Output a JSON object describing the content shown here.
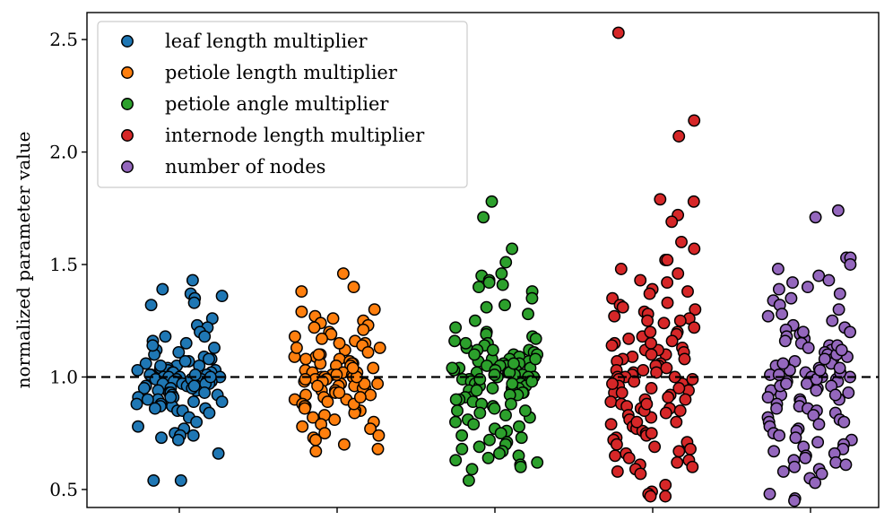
{
  "chart_data": {
    "type": "scatter",
    "title": "",
    "xlabel": "",
    "ylabel": "normalized parameter value",
    "ylim": [
      0.42,
      2.62
    ],
    "yticks": [
      0.5,
      1.0,
      1.5,
      2.0,
      2.5
    ],
    "ytick_labels": [
      "0.5",
      "1.0",
      "1.5",
      "2.0",
      "2.5"
    ],
    "reference_line": 1.0,
    "legend_position": "upper left",
    "grid": false,
    "series": [
      {
        "name": "leaf length multiplier",
        "color": "#1f77b4",
        "center": 1,
        "y": [
          1.43,
          1.39,
          1.37,
          1.36,
          1.35,
          1.33,
          1.32,
          1.26,
          1.23,
          1.22,
          1.2,
          1.18,
          1.18,
          1.16,
          1.15,
          1.12,
          1.1,
          1.09,
          1.08,
          1.08,
          1.06,
          1.05,
          1.05,
          1.04,
          1.04,
          1.03,
          1.03,
          1.02,
          1.02,
          1.02,
          1.01,
          1.01,
          1.01,
          1.0,
          1.0,
          1.0,
          1.0,
          0.99,
          0.99,
          0.99,
          0.98,
          0.98,
          0.98,
          0.97,
          0.97,
          0.97,
          0.96,
          0.96,
          0.96,
          0.95,
          0.95,
          0.95,
          0.94,
          0.94,
          0.93,
          0.93,
          0.92,
          0.92,
          0.91,
          0.91,
          0.9,
          0.9,
          0.89,
          0.88,
          0.88,
          0.87,
          0.87,
          0.86,
          0.86,
          0.85,
          0.85,
          0.84,
          0.82,
          0.8,
          0.78,
          0.77,
          0.75,
          0.74,
          0.74,
          0.73,
          0.72,
          0.66,
          0.54,
          0.54,
          1.13,
          1.07,
          1.03,
          0.99,
          0.95,
          0.91,
          0.97,
          1.01,
          1.05,
          0.93,
          0.89,
          1.11,
          1.14,
          1.07,
          0.96,
          1.0
        ]
      },
      {
        "name": "petiole length multiplier",
        "color": "#ff7f0e",
        "center": 2,
        "y": [
          1.46,
          1.4,
          1.38,
          1.3,
          1.29,
          1.27,
          1.26,
          1.25,
          1.24,
          1.23,
          1.22,
          1.21,
          1.2,
          1.19,
          1.18,
          1.17,
          1.16,
          1.15,
          1.14,
          1.13,
          1.12,
          1.11,
          1.1,
          1.09,
          1.09,
          1.08,
          1.07,
          1.06,
          1.06,
          1.05,
          1.05,
          1.04,
          1.03,
          1.03,
          1.02,
          1.02,
          1.01,
          1.01,
          1.0,
          1.0,
          1.0,
          0.99,
          0.99,
          0.98,
          0.98,
          0.97,
          0.97,
          0.96,
          0.96,
          0.95,
          0.95,
          0.94,
          0.94,
          0.93,
          0.92,
          0.92,
          0.91,
          0.9,
          0.9,
          0.89,
          0.88,
          0.87,
          0.87,
          0.86,
          0.85,
          0.85,
          0.84,
          0.83,
          0.82,
          0.81,
          0.8,
          0.79,
          0.78,
          0.77,
          0.75,
          0.74,
          0.73,
          0.72,
          0.7,
          0.68,
          0.67,
          1.02,
          1.06,
          0.97,
          1.1,
          0.93,
          1.0,
          1.15,
          0.88,
          1.04,
          0.96,
          1.08,
          0.91,
          1.13,
          0.99,
          1.01
        ]
      },
      {
        "name": "petiole angle multiplier",
        "color": "#2ca02c",
        "center": 3,
        "y": [
          1.78,
          1.71,
          1.57,
          1.51,
          1.46,
          1.45,
          1.43,
          1.42,
          1.41,
          1.4,
          1.38,
          1.35,
          1.32,
          1.31,
          1.28,
          1.25,
          1.22,
          1.2,
          1.19,
          1.18,
          1.17,
          1.16,
          1.15,
          1.14,
          1.13,
          1.12,
          1.12,
          1.11,
          1.1,
          1.1,
          1.09,
          1.08,
          1.08,
          1.07,
          1.07,
          1.06,
          1.06,
          1.05,
          1.05,
          1.04,
          1.04,
          1.03,
          1.03,
          1.02,
          1.02,
          1.01,
          1.01,
          1.0,
          1.0,
          1.0,
          0.99,
          0.99,
          0.98,
          0.98,
          0.97,
          0.97,
          0.96,
          0.96,
          0.95,
          0.95,
          0.94,
          0.94,
          0.93,
          0.93,
          0.92,
          0.91,
          0.91,
          0.9,
          0.89,
          0.88,
          0.87,
          0.86,
          0.85,
          0.84,
          0.83,
          0.82,
          0.81,
          0.8,
          0.79,
          0.78,
          0.77,
          0.76,
          0.75,
          0.74,
          0.73,
          0.72,
          0.71,
          0.7,
          0.69,
          0.68,
          0.67,
          0.66,
          0.65,
          0.64,
          0.63,
          0.62,
          0.61,
          0.6,
          0.59,
          0.54,
          1.02,
          0.98,
          1.05,
          0.95,
          1.08,
          0.92,
          1.12,
          0.88,
          1.0,
          1.03,
          0.97,
          1.06,
          0.94,
          1.1,
          0.9,
          1.15,
          0.85,
          1.01,
          0.99,
          1.04
        ]
      },
      {
        "name": "internode length multiplier",
        "color": "#d62728",
        "center": 4,
        "y": [
          2.53,
          2.14,
          2.07,
          1.79,
          1.78,
          1.72,
          1.69,
          1.6,
          1.57,
          1.52,
          1.52,
          1.48,
          1.46,
          1.43,
          1.42,
          1.39,
          1.38,
          1.37,
          1.35,
          1.33,
          1.32,
          1.31,
          1.3,
          1.29,
          1.28,
          1.27,
          1.26,
          1.25,
          1.24,
          1.22,
          1.2,
          1.19,
          1.18,
          1.17,
          1.16,
          1.15,
          1.14,
          1.13,
          1.12,
          1.11,
          1.1,
          1.09,
          1.08,
          1.07,
          1.06,
          1.05,
          1.04,
          1.03,
          1.02,
          1.01,
          1.0,
          1.0,
          0.99,
          0.98,
          0.97,
          0.96,
          0.95,
          0.94,
          0.93,
          0.92,
          0.91,
          0.9,
          0.89,
          0.88,
          0.87,
          0.86,
          0.85,
          0.84,
          0.83,
          0.82,
          0.81,
          0.8,
          0.79,
          0.78,
          0.77,
          0.76,
          0.75,
          0.74,
          0.73,
          0.72,
          0.71,
          0.7,
          0.69,
          0.68,
          0.67,
          0.66,
          0.65,
          0.64,
          0.63,
          0.62,
          0.61,
          0.6,
          0.59,
          0.58,
          0.57,
          0.52,
          0.49,
          0.48,
          0.47,
          0.47,
          1.05,
          0.97,
          1.12,
          0.9,
          1.0,
          1.08,
          0.86,
          1.15,
          0.93,
          1.02,
          0.8,
          1.2,
          0.95,
          1.1,
          0.85,
          1.25,
          0.99,
          0.75,
          1.03,
          0.88
        ]
      },
      {
        "name": "number of nodes",
        "color": "#9467bd",
        "center": 5,
        "y": [
          1.74,
          1.71,
          1.53,
          1.53,
          1.5,
          1.48,
          1.45,
          1.43,
          1.42,
          1.4,
          1.39,
          1.37,
          1.35,
          1.34,
          1.32,
          1.3,
          1.28,
          1.27,
          1.25,
          1.23,
          1.22,
          1.21,
          1.2,
          1.19,
          1.18,
          1.17,
          1.16,
          1.15,
          1.14,
          1.13,
          1.12,
          1.11,
          1.1,
          1.09,
          1.08,
          1.07,
          1.06,
          1.05,
          1.04,
          1.03,
          1.02,
          1.01,
          1.0,
          1.0,
          0.99,
          0.98,
          0.97,
          0.96,
          0.95,
          0.94,
          0.93,
          0.92,
          0.91,
          0.9,
          0.89,
          0.88,
          0.87,
          0.86,
          0.85,
          0.84,
          0.83,
          0.82,
          0.81,
          0.8,
          0.79,
          0.78,
          0.77,
          0.76,
          0.75,
          0.74,
          0.73,
          0.72,
          0.71,
          0.7,
          0.69,
          0.68,
          0.67,
          0.66,
          0.65,
          0.64,
          0.63,
          0.62,
          0.61,
          0.6,
          0.59,
          0.58,
          0.57,
          0.55,
          0.53,
          0.48,
          0.46,
          0.45,
          1.02,
          0.98,
          1.06,
          0.94,
          1.1,
          0.9,
          1.0,
          1.04,
          0.96,
          1.14,
          0.86,
          1.08,
          0.92,
          1.01,
          0.99,
          1.2,
          0.8,
          1.03,
          0.97,
          1.12
        ]
      }
    ]
  }
}
